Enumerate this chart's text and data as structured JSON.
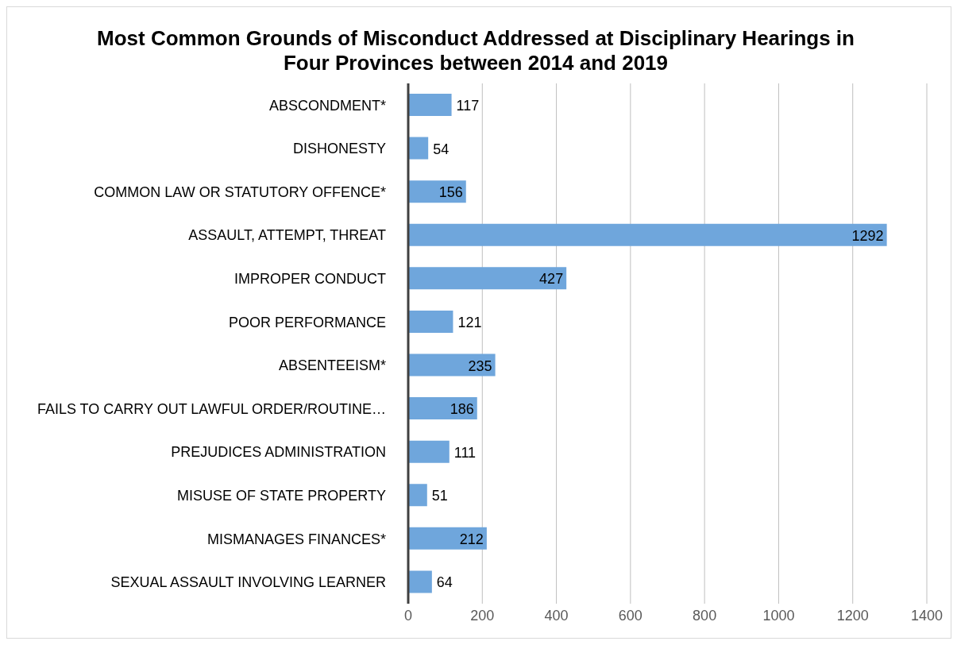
{
  "chart_data": {
    "type": "bar",
    "orientation": "horizontal",
    "title": "Most Common Grounds of Misconduct Addressed at Disciplinary Hearings in Four Provinces between 2014 and 2019",
    "categories": [
      "ABSCONDMENT*",
      "DISHONESTY",
      "COMMON LAW OR STATUTORY OFFENCE*",
      "ASSAULT, ATTEMPT, THREAT",
      "IMPROPER CONDUCT",
      "POOR PERFORMANCE",
      "ABSENTEEISM*",
      "FAILS TO CARRY OUT LAWFUL ORDER/ROUTINE…",
      "PREJUDICES ADMINISTRATION",
      "MISUSE OF STATE PROPERTY",
      "MISMANAGES FINANCES*",
      "SEXUAL ASSAULT INVOLVING LEARNER"
    ],
    "values": [
      117,
      54,
      156,
      1292,
      427,
      121,
      235,
      186,
      111,
      51,
      212,
      64
    ],
    "color": "#6fa6dc",
    "xlim": [
      0,
      1400
    ],
    "xticks": [
      0,
      200,
      400,
      600,
      800,
      1000,
      1200,
      1400
    ],
    "grid": "x",
    "data_labels": true
  }
}
